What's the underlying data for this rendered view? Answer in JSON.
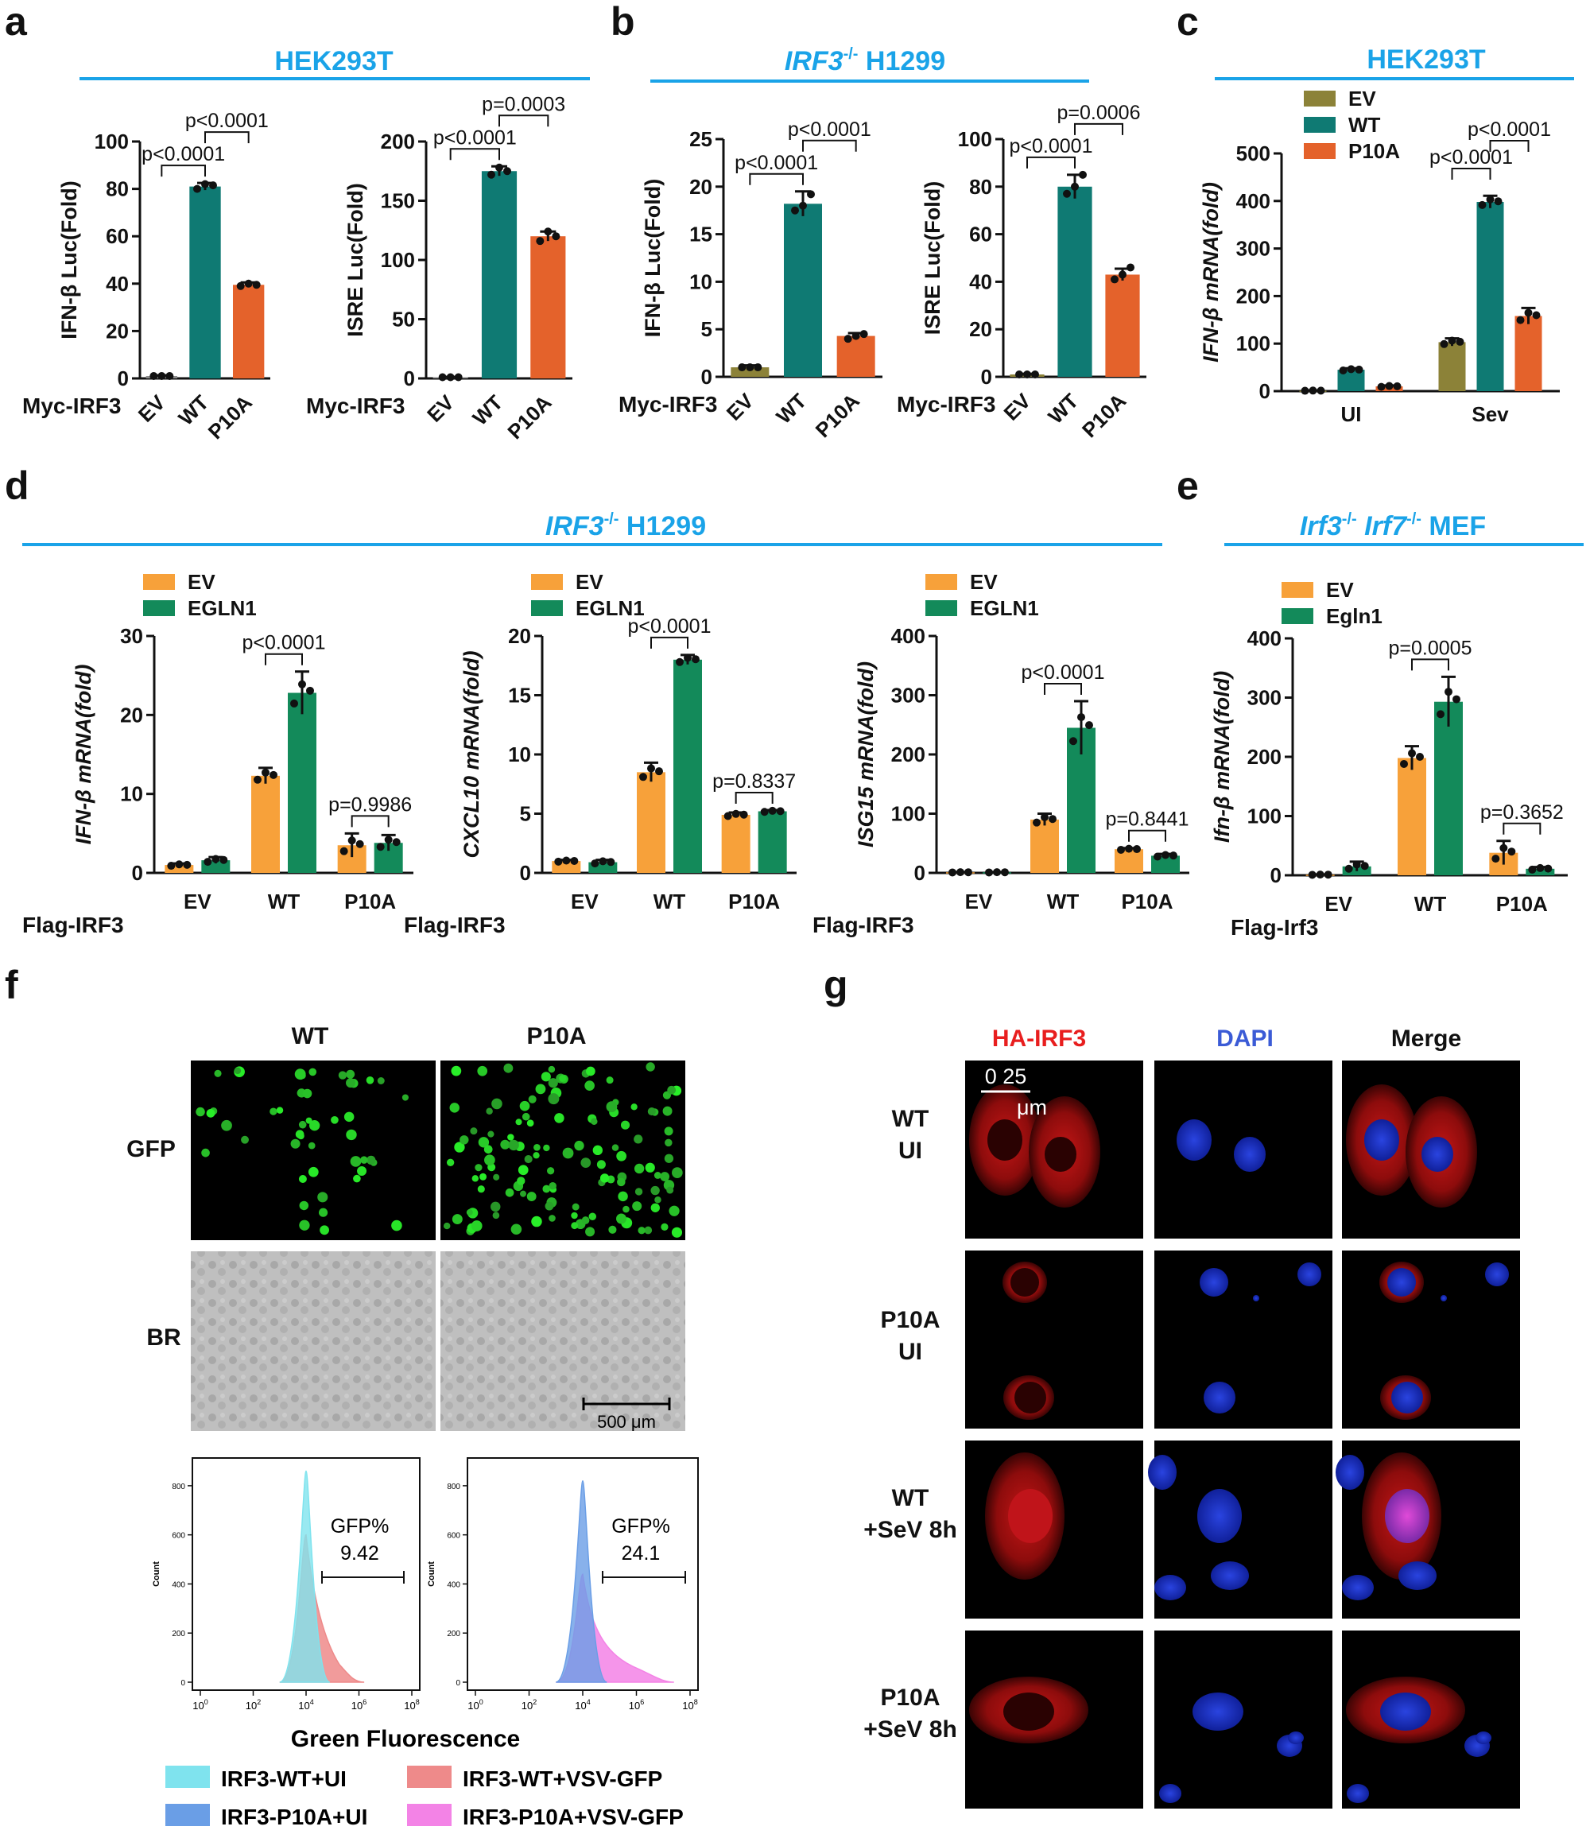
{
  "panels": {
    "a": {
      "label": "a",
      "title": "HEK293T"
    },
    "b": {
      "label": "b",
      "title_italic": "IRF3",
      "title_sup": "-/-",
      "title_rest": " H1299"
    },
    "c": {
      "label": "c",
      "title": "HEK293T"
    },
    "d": {
      "label": "d",
      "title_italic": "IRF3",
      "title_sup": "-/-",
      "title_rest": " H1299"
    },
    "e": {
      "label": "e",
      "title_italic1": "Irf3",
      "title_sup1": "-/-",
      "title_italic2": " Irf7",
      "title_sup2": "-/-",
      "title_rest": " MEF"
    },
    "f": {
      "label": "f"
    },
    "g": {
      "label": "g"
    }
  },
  "colors": {
    "ev_a": "#8a8a8a",
    "wt_teal": "#0f7a73",
    "p10a_orange": "#e4622b",
    "ev_olive": "#8c8238",
    "ev_light_orange": "#f7a13a",
    "egln_green": "#138a5a",
    "title_blue": "#1aa3e8",
    "cyan_hist": "#7fe3ee",
    "blue_hist": "#6a9ee6",
    "red_hist": "#ee8a8a",
    "pink_hist": "#f383e6"
  },
  "chart_data": [
    {
      "id": "a1",
      "type": "bar",
      "ylabel": "IFN-β Luc(Fold)",
      "ylim": [
        0,
        100
      ],
      "yticks": [
        0,
        20,
        40,
        60,
        80,
        100
      ],
      "row_label": "Myc-IRF3",
      "categories": [
        "EV",
        "WT",
        "P10A"
      ],
      "values": [
        1,
        81,
        39.5
      ],
      "errors": [
        0.3,
        1.5,
        1
      ],
      "points": [
        [
          1,
          1,
          1
        ],
        [
          80,
          82,
          81.5
        ],
        [
          39,
          40,
          39.5
        ]
      ],
      "colors": [
        "#8a8a8a",
        "#0f7a73",
        "#e4622b"
      ],
      "brackets": [
        {
          "from": 0,
          "to": 1,
          "label": "p<0.0001"
        },
        {
          "from": 1,
          "to": 2,
          "label": "p<0.0001"
        }
      ]
    },
    {
      "id": "a2",
      "type": "bar",
      "ylabel": "ISRE Luc(Fold)",
      "ylim": [
        0,
        200
      ],
      "yticks": [
        0,
        50,
        100,
        150,
        200
      ],
      "row_label": "Myc-IRF3",
      "categories": [
        "EV",
        "WT",
        "P10A"
      ],
      "values": [
        1,
        175,
        120
      ],
      "errors": [
        0.3,
        4,
        4
      ],
      "points": [
        [
          1,
          1,
          1
        ],
        [
          172,
          178,
          175
        ],
        [
          116,
          124,
          120
        ]
      ],
      "colors": [
        "#8a8a8a",
        "#0f7a73",
        "#e4622b"
      ],
      "brackets": [
        {
          "from": 0,
          "to": 1,
          "label": "p<0.0001"
        },
        {
          "from": 1,
          "to": 2,
          "label": "p=0.0003"
        }
      ]
    },
    {
      "id": "b1",
      "type": "bar",
      "ylabel": "IFN-β Luc(Fold)",
      "ylim": [
        0,
        25
      ],
      "yticks": [
        0,
        5,
        10,
        15,
        20,
        25
      ],
      "row_label": "Myc-IRF3",
      "categories": [
        "EV",
        "WT",
        "P10A"
      ],
      "values": [
        1,
        18.2,
        4.3
      ],
      "errors": [
        0.2,
        1.3,
        0.3
      ],
      "points": [
        [
          1,
          1,
          1
        ],
        [
          17.5,
          18,
          19.2
        ],
        [
          4,
          4.3,
          4.5
        ]
      ],
      "colors": [
        "#8c8238",
        "#0f7a73",
        "#e4622b"
      ],
      "brackets": [
        {
          "from": 0,
          "to": 1,
          "label": "p<0.0001"
        },
        {
          "from": 1,
          "to": 2,
          "label": "p<0.0001"
        }
      ]
    },
    {
      "id": "b2",
      "type": "bar",
      "ylabel": "ISRE Luc(Fold)",
      "ylim": [
        0,
        100
      ],
      "yticks": [
        0,
        20,
        40,
        60,
        80,
        100
      ],
      "row_label": "Myc-IRF3",
      "categories": [
        "EV",
        "WT",
        "P10A"
      ],
      "values": [
        1,
        80,
        43
      ],
      "errors": [
        0.3,
        5,
        2.5
      ],
      "points": [
        [
          1,
          1,
          1
        ],
        [
          77,
          80,
          85
        ],
        [
          41,
          43,
          46
        ]
      ],
      "colors": [
        "#8c8238",
        "#0f7a73",
        "#e4622b"
      ],
      "brackets": [
        {
          "from": 0,
          "to": 1,
          "label": "p<0.0001"
        },
        {
          "from": 1,
          "to": 2,
          "label": "p=0.0006"
        }
      ]
    },
    {
      "id": "c",
      "type": "bar",
      "ylabel": "IFN-β mRNA(fold)",
      "ylabel_italic": true,
      "ylim": [
        0,
        500
      ],
      "yticks": [
        0,
        100,
        200,
        300,
        400,
        500
      ],
      "groups": [
        "UI",
        "Sev"
      ],
      "series": [
        {
          "name": "EV",
          "color": "#8c8238",
          "values": [
            1,
            103
          ],
          "errors": [
            0.5,
            8
          ]
        },
        {
          "name": "WT",
          "color": "#0f7a73",
          "values": [
            45,
            398
          ],
          "errors": [
            3,
            13
          ]
        },
        {
          "name": "P10A",
          "color": "#e4622b",
          "values": [
            10,
            158
          ],
          "errors": [
            2,
            17
          ]
        }
      ],
      "brackets": [
        {
          "group": 1,
          "from": 0,
          "to": 1,
          "label": "p<0.0001"
        },
        {
          "group": 1,
          "from": 1,
          "to": 2,
          "label": "p<0.0001"
        }
      ]
    },
    {
      "id": "d1",
      "type": "bar",
      "ylabel": "IFN-β mRNA(fold)",
      "ylabel_italic": true,
      "ylim": [
        0,
        30
      ],
      "yticks": [
        0,
        10,
        20,
        30
      ],
      "row_label": "Flag-IRF3",
      "groups": [
        "EV",
        "WT",
        "P10A"
      ],
      "series": [
        {
          "name": "EV",
          "color": "#f7a13a",
          "values": [
            1,
            12.3,
            3.5
          ],
          "errors": [
            0.2,
            1,
            1.5
          ]
        },
        {
          "name": "EGLN1",
          "color": "#138a5a",
          "values": [
            1.6,
            22.8,
            3.8
          ],
          "errors": [
            0.4,
            2.7,
            1
          ]
        }
      ],
      "brackets": [
        {
          "group": 1,
          "label": "p<0.0001"
        },
        {
          "group": 2,
          "label": "p=0.9986"
        }
      ]
    },
    {
      "id": "d2",
      "type": "bar",
      "ylabel": "CXCL10 mRNA(fold)",
      "ylabel_italic": true,
      "ylim": [
        0,
        20
      ],
      "yticks": [
        0,
        5,
        10,
        15,
        20
      ],
      "row_label": "Flag-IRF3",
      "groups": [
        "EV",
        "WT",
        "P10A"
      ],
      "series": [
        {
          "name": "EV",
          "color": "#f7a13a",
          "values": [
            1,
            8.5,
            4.9
          ],
          "errors": [
            0.1,
            0.8,
            0.2
          ]
        },
        {
          "name": "EGLN1",
          "color": "#138a5a",
          "values": [
            0.9,
            18,
            5.2
          ],
          "errors": [
            0.2,
            0.4,
            0.1
          ]
        }
      ],
      "brackets": [
        {
          "group": 1,
          "label": "p<0.0001"
        },
        {
          "group": 2,
          "label": "p=0.8337"
        }
      ]
    },
    {
      "id": "d3",
      "type": "bar",
      "ylabel": "ISG15 mRNA(fold)",
      "ylabel_italic": true,
      "ylim": [
        0,
        400
      ],
      "yticks": [
        0,
        100,
        200,
        300,
        400
      ],
      "row_label": "Flag-IRF3",
      "groups": [
        "EV",
        "WT",
        "P10A"
      ],
      "series": [
        {
          "name": "EV",
          "color": "#f7a13a",
          "values": [
            1,
            90,
            40
          ],
          "errors": [
            0.5,
            10,
            2
          ]
        },
        {
          "name": "EGLN1",
          "color": "#138a5a",
          "values": [
            1,
            245,
            29
          ],
          "errors": [
            0.5,
            45,
            3
          ]
        }
      ],
      "brackets": [
        {
          "group": 1,
          "label": "p<0.0001"
        },
        {
          "group": 2,
          "label": "p=0.8441"
        }
      ]
    },
    {
      "id": "e",
      "type": "bar",
      "ylabel": "Ifn-β mRNA(fold)",
      "ylabel_italic": true,
      "ylim": [
        0,
        400
      ],
      "yticks": [
        0,
        100,
        200,
        300,
        400
      ],
      "row_label": "Flag-Irf3",
      "groups": [
        "EV",
        "WT",
        "P10A"
      ],
      "series": [
        {
          "name": "EV",
          "color": "#f7a13a",
          "values": [
            1,
            198,
            38
          ],
          "errors": [
            0.5,
            20,
            20
          ]
        },
        {
          "name": "Egln1",
          "color": "#138a5a",
          "values": [
            15,
            293,
            11
          ],
          "errors": [
            8,
            42,
            3
          ]
        }
      ],
      "brackets": [
        {
          "group": 1,
          "label": "p=0.0005"
        },
        {
          "group": 2,
          "label": "p=0.3652"
        }
      ]
    },
    {
      "id": "f_hist",
      "type": "area",
      "xlabel": "Green Fluorescence",
      "ylabel": "Count",
      "yticks": [
        0,
        200,
        400,
        600,
        800
      ],
      "xticks": [
        "10^0",
        "10^2",
        "10^4",
        "10^6",
        "10^8"
      ],
      "gates": [
        {
          "label": "GFP%",
          "value": "9.42"
        },
        {
          "label": "GFP%",
          "value": "24.1"
        }
      ],
      "legend": [
        "IRF3-WT+UI",
        "IRF3-WT+VSV-GFP",
        "IRF3-P10A+UI",
        "IRF3-P10A+VSV-GFP"
      ]
    }
  ],
  "micro_f": {
    "cols": [
      "WT",
      "P10A"
    ],
    "rows": [
      "GFP",
      "BR"
    ],
    "scale_bar": "500 μm"
  },
  "micro_g": {
    "cols": [
      "HA-IRF3",
      "DAPI",
      "Merge"
    ],
    "col_colors": [
      "#e81e1e",
      "#3b5bd6",
      "#111111"
    ],
    "rows": [
      [
        "WT",
        "UI"
      ],
      [
        "P10A",
        "UI"
      ],
      [
        "WT",
        "+SeV 8h"
      ],
      [
        "P10A",
        "+SeV 8h"
      ]
    ],
    "scale_bar": [
      "0 25",
      "μm"
    ]
  }
}
